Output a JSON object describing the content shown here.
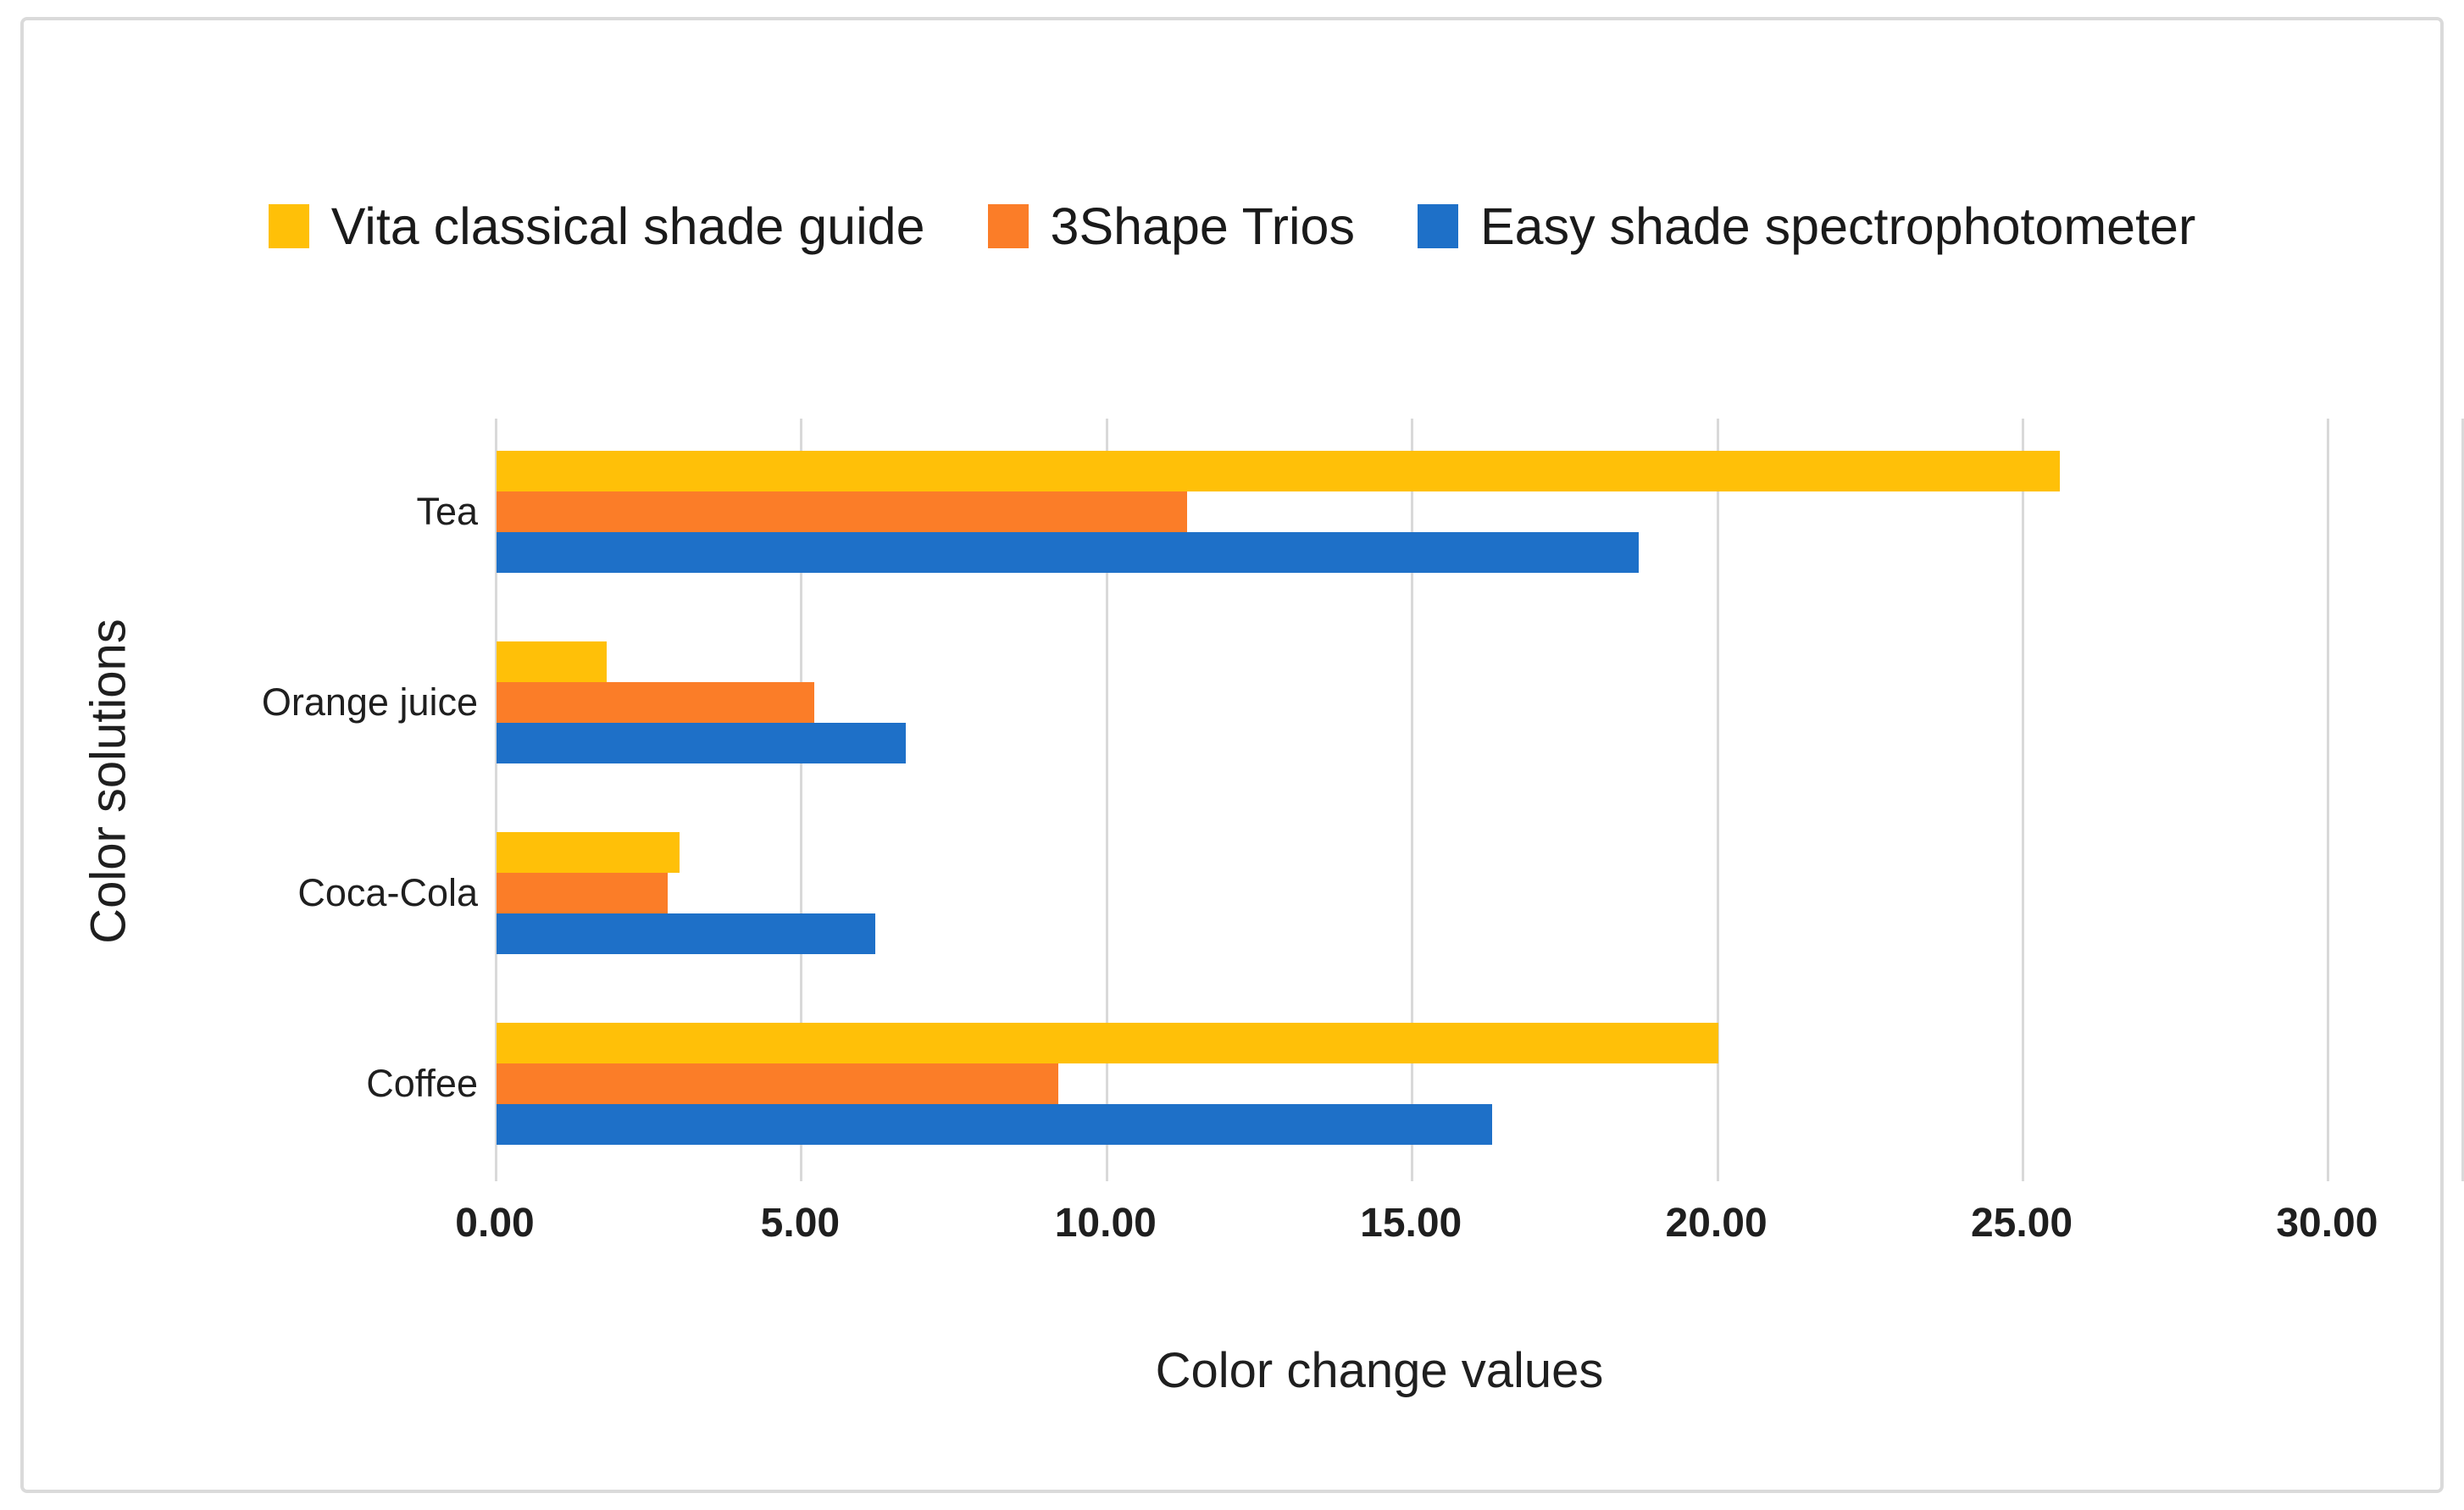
{
  "figure": {
    "background": "#ffffff",
    "border_color": "#dadada",
    "text_color": "#1f1f1f",
    "gridline_color": "#d9d9d9"
  },
  "chart_data": {
    "type": "bar",
    "orientation": "horizontal",
    "title": "",
    "xlabel": "Color change values",
    "ylabel": "Color solutions",
    "categories": [
      "Tea",
      "Orange juice",
      "Coca-Cola",
      "Coffee"
    ],
    "series": [
      {
        "name": "Vita classical shade guide",
        "color": "#FFC008",
        "values": [
          25.6,
          1.8,
          3.0,
          20.0
        ]
      },
      {
        "name": "3Shape Trios",
        "color": "#FB7D28",
        "values": [
          11.3,
          5.2,
          2.8,
          9.2
        ]
      },
      {
        "name": "Easy shade spectrophotometer",
        "color": "#1E70C8",
        "values": [
          18.7,
          6.7,
          6.2,
          16.3
        ]
      }
    ],
    "x_axis": {
      "min": 0,
      "max": 30,
      "tick_step": 5,
      "tick_labels": [
        "0.00",
        "5.00",
        "10.00",
        "15.00",
        "20.00",
        "25.00",
        "30.00"
      ]
    },
    "grid": "vertical",
    "legend_position": "top"
  }
}
